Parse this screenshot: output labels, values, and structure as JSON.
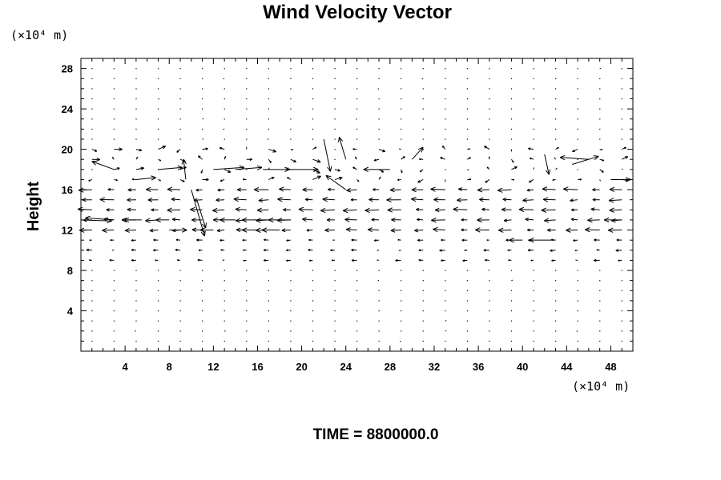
{
  "chart_data": {
    "type": "vector_field",
    "title": "Wind Velocity Vector",
    "ylabel": "Height",
    "y_unit_label": "(×10⁴ m)",
    "x_unit_label": "(×10⁴ m)",
    "time_label": "TIME = 8800000.0",
    "xlim": [
      0,
      50
    ],
    "ylim": [
      0,
      29
    ],
    "x_ticks": [
      "4",
      "8",
      "12",
      "16",
      "20",
      "24",
      "28",
      "32",
      "36",
      "40",
      "44",
      "48"
    ],
    "y_ticks": [
      "4",
      "8",
      "12",
      "16",
      "20",
      "24",
      "28"
    ],
    "grid": false,
    "arrow_color": "#000000",
    "vectors": [
      {
        "x": 0,
        "y": 13,
        "u": 2.8,
        "v": -0.1
      },
      {
        "x": 3,
        "y": 13,
        "u": -2.6,
        "v": 0.2
      },
      {
        "x": 5.5,
        "y": 13,
        "u": -1.8,
        "v": 0
      },
      {
        "x": 8,
        "y": 13,
        "u": -1.2,
        "v": 0
      },
      {
        "x": 14,
        "y": 13,
        "u": -1.4,
        "v": 0
      },
      {
        "x": 17,
        "y": 13,
        "u": -2.4,
        "v": 0
      },
      {
        "x": 19,
        "y": 13,
        "u": -2.0,
        "v": 0
      },
      {
        "x": 49,
        "y": 13,
        "u": -1.6,
        "v": 0
      },
      {
        "x": 8,
        "y": 12,
        "u": 1.6,
        "v": 0
      },
      {
        "x": 12,
        "y": 12,
        "u": -1.2,
        "v": 0
      },
      {
        "x": 16,
        "y": 12,
        "u": -1.4,
        "v": 0
      },
      {
        "x": 18,
        "y": 12,
        "u": -1.6,
        "v": 0
      },
      {
        "x": 3,
        "y": 18,
        "u": -2.0,
        "v": 0.8
      },
      {
        "x": 5,
        "y": 17,
        "u": 1.8,
        "v": 0.2
      },
      {
        "x": 7,
        "y": 18,
        "u": 2.2,
        "v": 0.2
      },
      {
        "x": 9.5,
        "y": 17,
        "u": -0.2,
        "v": 2.0
      },
      {
        "x": 10,
        "y": 16,
        "u": 1.2,
        "v": -4.6
      },
      {
        "x": 10.5,
        "y": 15,
        "u": 0.8,
        "v": -2.8
      },
      {
        "x": 12,
        "y": 18,
        "u": 2.8,
        "v": 0.2
      },
      {
        "x": 14,
        "y": 18,
        "u": 2.4,
        "v": 0.2
      },
      {
        "x": 16.5,
        "y": 18,
        "u": 2.4,
        "v": 0
      },
      {
        "x": 18.5,
        "y": 18,
        "u": 3.0,
        "v": 0
      },
      {
        "x": 22,
        "y": 21,
        "u": 0.6,
        "v": -3.2
      },
      {
        "x": 24,
        "y": 19,
        "u": -0.6,
        "v": 2.2
      },
      {
        "x": 24,
        "y": 16,
        "u": -1.8,
        "v": 1.4
      },
      {
        "x": 28,
        "y": 18,
        "u": -2.4,
        "v": 0
      },
      {
        "x": 30,
        "y": 19,
        "u": 1.0,
        "v": 1.2
      },
      {
        "x": 44.5,
        "y": 18.5,
        "u": 2.4,
        "v": 0.8
      },
      {
        "x": 46,
        "y": 19,
        "u": -2.6,
        "v": 0.2
      },
      {
        "x": 42,
        "y": 19.5,
        "u": 0.4,
        "v": -2.0
      },
      {
        "x": 43,
        "y": 11,
        "u": -2.4,
        "v": 0
      },
      {
        "x": 40,
        "y": 11,
        "u": -1.2,
        "v": 0
      },
      {
        "x": 48,
        "y": 17,
        "u": 1.8,
        "v": 0
      }
    ]
  }
}
